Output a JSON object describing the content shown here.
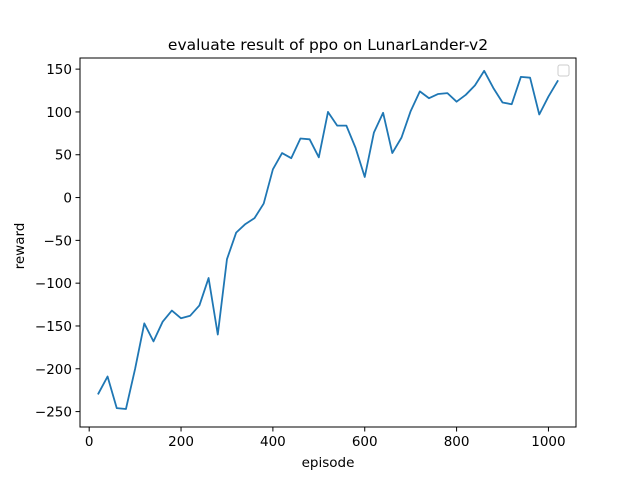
{
  "chart_data": {
    "type": "line",
    "title": "evaluate result of ppo on LunarLander-v2",
    "xlabel": "episode",
    "ylabel": "reward",
    "xlim": [
      -20,
      1060
    ],
    "ylim": [
      -268,
      163
    ],
    "xticks": [
      0,
      200,
      400,
      600,
      800,
      1000
    ],
    "yticks": [
      -250,
      -200,
      -150,
      -100,
      -50,
      0,
      50,
      100,
      150
    ],
    "grid": false,
    "legend": "top-right (empty)",
    "series": [
      {
        "color": "#1f77b4",
        "x": [
          20,
          40,
          60,
          80,
          100,
          120,
          140,
          160,
          180,
          200,
          220,
          240,
          260,
          280,
          300,
          320,
          340,
          360,
          380,
          400,
          420,
          440,
          460,
          480,
          500,
          520,
          540,
          560,
          580,
          600,
          620,
          640,
          660,
          680,
          700,
          720,
          740,
          760,
          780,
          800,
          820,
          840,
          860,
          880,
          900,
          920,
          940,
          960,
          980,
          1000,
          1020
        ],
        "y": [
          -229,
          -209,
          -246,
          -247,
          -200,
          -147,
          -168,
          -145,
          -132,
          -141,
          -138,
          -126,
          -94,
          -160,
          -72,
          -41,
          -31,
          -24,
          -7,
          33,
          52,
          46,
          69,
          68,
          47,
          100,
          84,
          84,
          58,
          24,
          76,
          99,
          52,
          70,
          101,
          124,
          116,
          121,
          122,
          112,
          120,
          131,
          148,
          128,
          111,
          109,
          141,
          140,
          97,
          118,
          136
        ]
      }
    ]
  }
}
